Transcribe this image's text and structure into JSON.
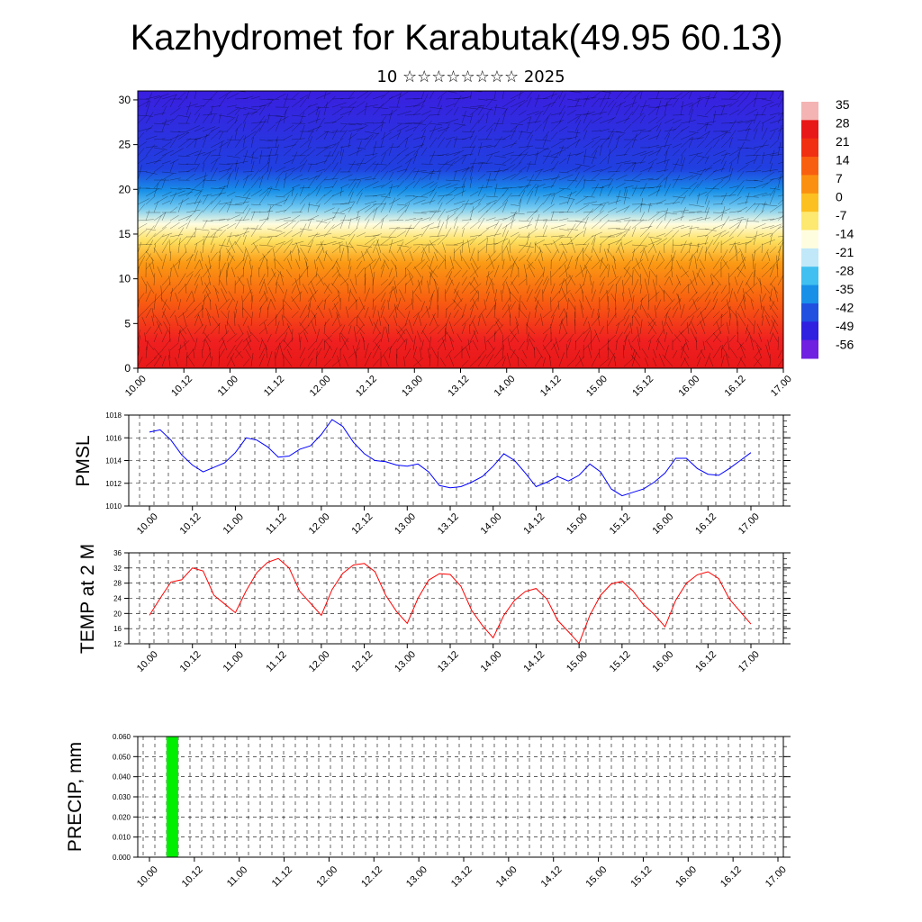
{
  "header": {
    "title": "Kazhydromet for Karabutak(49.95 60.13)",
    "subtitle": "10 ☆☆☆☆☆☆☆☆ 2025"
  },
  "x_tick_labels": [
    "10.00",
    "10.12",
    "11.00",
    "11.12",
    "12.00",
    "12.12",
    "13.00",
    "13.12",
    "14.00",
    "14.12",
    "15.00",
    "15.12",
    "16.00",
    "16.12",
    "17.00"
  ],
  "chart_data": [
    {
      "type": "heatmap",
      "description_visible": "Temperature cross-section with wind barbs",
      "x_ticks": [
        "10.00",
        "10.12",
        "11.00",
        "11.12",
        "12.00",
        "12.12",
        "13.00",
        "13.12",
        "14.00",
        "14.12",
        "15.00",
        "15.12",
        "16.00",
        "16.12",
        "17.00"
      ],
      "y_ticks": [
        0,
        5,
        10,
        15,
        20,
        25,
        30
      ],
      "ylim": [
        0,
        31
      ],
      "colorbar": {
        "labels": [
          "35",
          "28",
          "21",
          "14",
          "7",
          "0",
          "-7",
          "-14",
          "-21",
          "-28",
          "-35",
          "-42",
          "-49",
          "-56"
        ],
        "colors": [
          "#f4b4b4",
          "#e81818",
          "#f03010",
          "#f86010",
          "#fb9010",
          "#fcc020",
          "#fde870",
          "#fffde0",
          "#c0e8f8",
          "#40c0f0",
          "#1890e8",
          "#2050e0",
          "#3020e0",
          "#7020e0"
        ]
      },
      "profile": [
        {
          "z": 0,
          "t": 30
        },
        {
          "z": 5,
          "t": 18
        },
        {
          "z": 10,
          "t": 5
        },
        {
          "z": 15,
          "t": -10
        },
        {
          "z": 18,
          "t": -25
        },
        {
          "z": 22,
          "t": -45
        },
        {
          "z": 31,
          "t": -56
        }
      ]
    },
    {
      "type": "line",
      "ylabel": "PMSL",
      "ylim": [
        1010,
        1018
      ],
      "y_ticks": [
        1010,
        1012,
        1014,
        1016,
        1018
      ],
      "color": "#0000ff",
      "series": [
        {
          "values": [
            1016.5,
            1016.7,
            1015.8,
            1014.5,
            1013.6,
            1013.0,
            1013.4,
            1013.8,
            1014.7,
            1016.0,
            1015.8,
            1015.2,
            1014.3,
            1014.4,
            1015.0,
            1015.3,
            1016.3,
            1017.6,
            1017.0,
            1015.6,
            1014.6,
            1014.0,
            1013.9,
            1013.6,
            1013.5,
            1013.7,
            1013.0,
            1011.8,
            1011.6,
            1011.7,
            1012.1,
            1012.6,
            1013.5,
            1014.6,
            1014.0,
            1012.9,
            1011.7,
            1012.1,
            1012.6,
            1012.2,
            1012.7,
            1013.7,
            1013.0,
            1011.5,
            1010.9,
            1011.2,
            1011.5,
            1012.1,
            1012.9,
            1014.2,
            1014.2,
            1013.3,
            1012.8,
            1012.7,
            1013.3,
            1014.0,
            1014.7
          ]
        }
      ]
    },
    {
      "type": "line",
      "ylabel": "TEMP at 2 M",
      "ylim": [
        12,
        36
      ],
      "y_ticks": [
        12,
        16,
        20,
        24,
        28,
        32,
        36
      ],
      "color": "#ff0000",
      "series": [
        {
          "values": [
            19.5,
            24,
            28.3,
            28.9,
            32,
            31.2,
            24.8,
            22.5,
            20.2,
            26,
            30.8,
            33.5,
            34.5,
            32,
            25.8,
            22.7,
            19.5,
            26.3,
            30.6,
            32.8,
            33.2,
            31,
            24.8,
            20.5,
            17.4,
            24,
            28.8,
            30.5,
            30.3,
            27.2,
            20.8,
            16.8,
            13.6,
            19.5,
            23.5,
            25.8,
            26.6,
            23.8,
            18.2,
            15.2,
            12.1,
            19.5,
            24.8,
            27.8,
            28.5,
            26,
            22.3,
            19.8,
            16.5,
            23.5,
            28,
            30.2,
            31,
            29.2,
            23.8,
            20.5,
            17.2
          ]
        }
      ]
    },
    {
      "type": "bar",
      "ylabel": "PRECIP, mm",
      "ylim": [
        0,
        0.06
      ],
      "y_ticks": [
        "0.000",
        "0.010",
        "0.020",
        "0.030",
        "0.040",
        "0.050",
        "0.060"
      ],
      "color": "#00ee00",
      "bars": [
        {
          "x": "10.06",
          "value": 0.06
        }
      ]
    }
  ]
}
